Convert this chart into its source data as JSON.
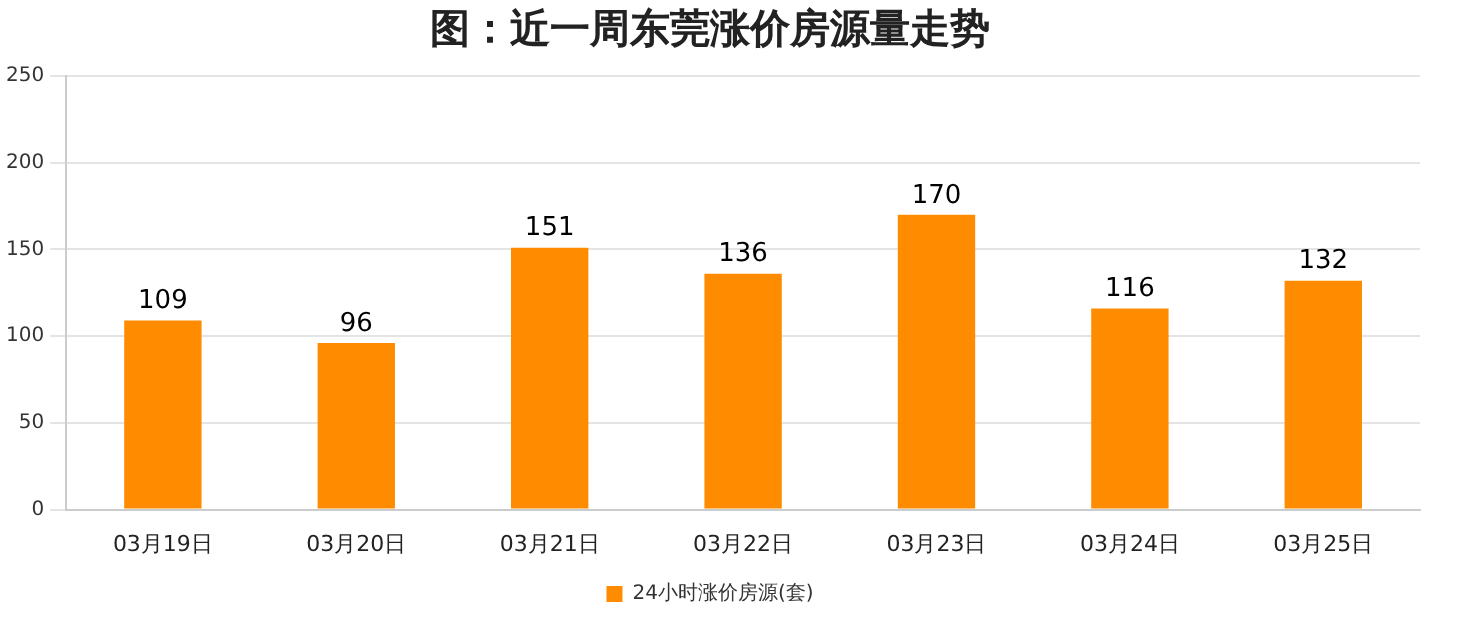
{
  "chart_data": {
    "type": "bar",
    "title": "图：近一周东莞涨价房源量走势",
    "categories": [
      "03月19日",
      "03月20日",
      "03月21日",
      "03月22日",
      "03月23日",
      "03月24日",
      "03月25日"
    ],
    "series": [
      {
        "name": "24小时涨价房源(套)",
        "color": "#ff8c00",
        "values": [
          109,
          96,
          151,
          136,
          170,
          116,
          132
        ]
      }
    ],
    "ylim": [
      0,
      250
    ],
    "yticks": [
      0,
      50,
      100,
      150,
      200,
      250
    ],
    "grid": "y",
    "legend": "bottom",
    "data_labels": true
  }
}
